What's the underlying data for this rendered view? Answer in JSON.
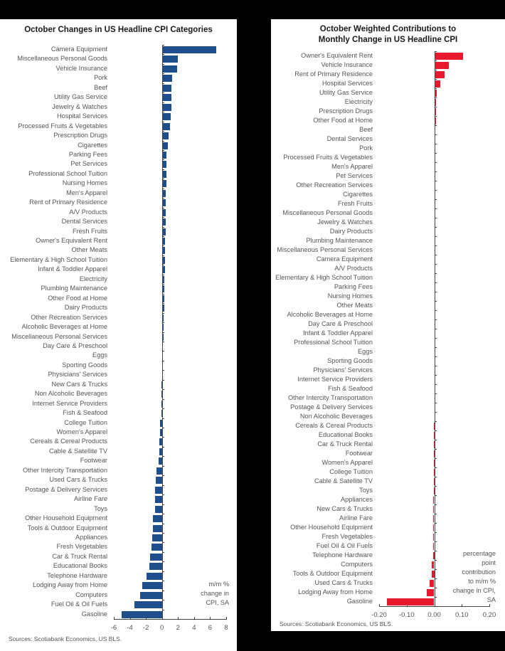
{
  "chart_data": [
    {
      "type": "bar",
      "orientation": "horizontal",
      "title": "October Changes in US Headline CPI Categories",
      "xlabel": "m/m % change in CPI, SA",
      "ylabel": "",
      "xlim": [
        -6,
        8
      ],
      "xticks": [
        "-6",
        "-4",
        "-2",
        "0",
        "2",
        "4",
        "6",
        "8"
      ],
      "grid": false,
      "legend": null,
      "bar_color": "#1f4e8c",
      "source": "Sources: Scotiabank Economics, US BLS.",
      "categories": [
        "Camera Equipment",
        "Miscellaneous Personal Goods",
        "Vehicle Insurance",
        "Pork",
        "Beef",
        "Utility Gas Service",
        "Jewelry & Watches",
        "Hospital Services",
        "Processed Fruits & Vegetables",
        "Prescription Drugs",
        "Cigarettes",
        "Parking Fees",
        "Pet Services",
        "Professional School Tuition",
        "Nursing Homes",
        "Men's Apparel",
        "Rent of Primary Residence",
        "A/V Products",
        "Dental Services",
        "Fresh Fruits",
        "Owner's Equivalent Rent",
        "Other Meats",
        "Elementary & High School Tuition",
        "Infant & Toddler Apparel",
        "Electricity",
        "Plumbing Maintenance",
        "Other Food at Home",
        "Dairy Products",
        "Other Recreation Services",
        "Alcoholic Beverages at Home",
        "Miscellaneous Personal Services",
        "Day Care & Preschool",
        "Eggs",
        "Sporting Goods",
        "Physicians' Services",
        "New Cars & Trucks",
        "Non Alcoholic Beverages",
        "Internet Service Providers",
        "Fish & Seafood",
        "College Tuition",
        "Women's Apparel",
        "Cereals & Cereal Products",
        "Cable & Satellite TV",
        "Footwear",
        "Other Intercity Transportation",
        "Used Cars & Trucks",
        "Postage & Delivery Services",
        "Airline Fare",
        "Toys",
        "Other Household Equipment",
        "Tools & Outdoor Equipment",
        "Appliances",
        "Fresh Vegetables",
        "Car & Truck Rental",
        "Educational Books",
        "Telephone Hardware",
        "Lodging Away from Home",
        "Computers",
        "Fuel Oil & Oil Fuels",
        "Gasoline"
      ],
      "values": [
        6.8,
        2.0,
        1.9,
        1.3,
        1.2,
        1.2,
        1.2,
        1.1,
        1.0,
        0.8,
        0.7,
        0.6,
        0.6,
        0.6,
        0.6,
        0.5,
        0.5,
        0.5,
        0.5,
        0.5,
        0.4,
        0.4,
        0.4,
        0.4,
        0.3,
        0.3,
        0.3,
        0.3,
        0.2,
        0.2,
        0.2,
        0.1,
        0.1,
        0.0,
        0.0,
        -0.1,
        -0.1,
        -0.1,
        -0.1,
        -0.2,
        -0.2,
        -0.3,
        -0.3,
        -0.4,
        -0.7,
        -0.8,
        -0.9,
        -0.9,
        -0.9,
        -1.1,
        -1.1,
        -1.2,
        -1.3,
        -1.5,
        -1.6,
        -1.9,
        -2.5,
        -2.7,
        -3.4,
        -5.0
      ]
    },
    {
      "type": "bar",
      "orientation": "horizontal",
      "title": "October Weighted Contributions to Monthly Change in US Headline CPI",
      "xlabel": "percentage point contribution to m/m % change in CPI, SA",
      "ylabel": "",
      "xlim": [
        -0.2,
        0.2
      ],
      "xticks": [
        "-0.20",
        "-0.10",
        "0.00",
        "0.10",
        "0.20"
      ],
      "grid": false,
      "legend": null,
      "bar_color": "#e8192c",
      "source": "Sources: Scotiabank Economics, US BLS.",
      "categories": [
        "Owner's Equivalent Rent",
        "Vehicle Insurance",
        "Rent of Primary Residence",
        "Hospital Services",
        "Utility Gas Service",
        "Electricity",
        "Prescription Drugs",
        "Other Food at Home",
        "Beef",
        "Dental Services",
        "Pork",
        "Processed Fruits & Vegetables",
        "Men's Apparel",
        "Pet Services",
        "Other Recreation Services",
        "Cigarettes",
        "Fresh Fruits",
        "Miscellaneous Personal Goods",
        "Jewelry & Watches",
        "Dairy Products",
        "Plumbing Maintenance",
        "Miscellaneous Personal Services",
        "Camera Equipment",
        "A/V Products",
        "Elementary & High School Tuition",
        "Parking Fees",
        "Nursing Homes",
        "Other Meats",
        "Alcoholic Beverages at Home",
        "Day Care & Preschool",
        "Infant & Toddler Apparel",
        "Professional School Tuition",
        "Eggs",
        "Sporting Goods",
        "Physicians' Services",
        "Internet Service Providers",
        "Fish & Seafood",
        "Other Intercity Transportation",
        "Postage & Delivery Services",
        "Non Alcoholic Beverages",
        "Cereals & Cereal Products",
        "Educational Books",
        "Car & Truck Rental",
        "Footwear",
        "Women's Apparel",
        "College Tuition",
        "Cable & Satellite TV",
        "Toys",
        "Appliances",
        "New Cars & Trucks",
        "Airline Fare",
        "Other Household Equipment",
        "Fresh Vegetables",
        "Fuel Oil & Oil Fuels",
        "Telephone Hardware",
        "Computers",
        "Tools & Outdoor Equipment",
        "Used Cars & Trucks",
        "Lodging Away from Home",
        "Gasoline"
      ],
      "values": [
        0.105,
        0.052,
        0.038,
        0.021,
        0.008,
        0.007,
        0.007,
        0.007,
        0.005,
        0.004,
        0.004,
        0.004,
        0.003,
        0.003,
        0.003,
        0.003,
        0.003,
        0.003,
        0.002,
        0.002,
        0.002,
        0.002,
        0.002,
        0.002,
        0.002,
        0.002,
        0.002,
        0.001,
        0.001,
        0.001,
        0.001,
        0.001,
        0.0,
        0.0,
        0.0,
        0.0,
        0.0,
        0.0,
        0.0,
        0.0,
        -0.001,
        -0.001,
        -0.001,
        -0.001,
        -0.001,
        -0.001,
        -0.002,
        -0.002,
        -0.003,
        -0.003,
        -0.003,
        -0.004,
        -0.004,
        -0.004,
        -0.005,
        -0.008,
        -0.01,
        -0.018,
        -0.026,
        -0.172
      ]
    }
  ],
  "left": {
    "title": "October Changes in US Headline CPI Categories",
    "unit_label": "m/m %\nchange in\nCPI, SA",
    "source": "Sources: Scotiabank Economics, US BLS."
  },
  "right": {
    "title": "October Weighted Contributions to\nMonthly Change in US Headline CPI",
    "unit_label": "percentage\npoint\ncontribution\nto m/m %\nchange in CPI,\nSA",
    "source": "Sources: Scotiabank Economics, US BLS."
  }
}
